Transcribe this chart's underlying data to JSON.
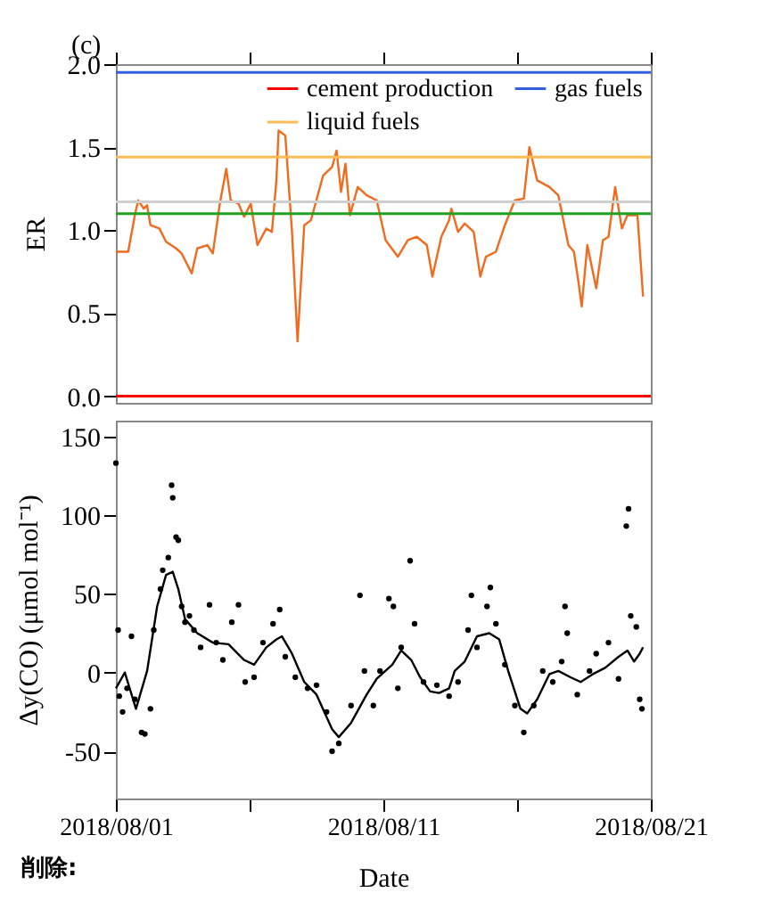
{
  "chart_data": [
    {
      "type": "line",
      "ylabel": "ER",
      "annotations": [
        "(c)"
      ],
      "legend": "top right",
      "tick_labels": "y",
      "x": [
        "2018-08-01T00:00",
        "2018-08-01T11:00",
        "2018-08-01T17:00",
        "2018-08-01T20:00",
        "2018-08-02T01:00",
        "2018-08-02T04:00",
        "2018-08-02T07:00",
        "2018-08-02T15:00",
        "2018-08-02T21:00",
        "2018-08-03T06:00",
        "2018-08-03T11:00",
        "2018-08-03T20:00",
        "2018-08-04T01:00",
        "2018-08-04T10:00",
        "2018-08-04T15:00",
        "2018-08-04T21:00",
        "2018-08-05T03:00",
        "2018-08-05T07:00",
        "2018-08-05T14:00",
        "2018-08-05T19:00",
        "2018-08-06T01:00",
        "2018-08-06T07:00",
        "2018-08-06T15:00",
        "2018-08-06T20:00",
        "2018-08-07T00:00",
        "2018-08-07T02:00",
        "2018-08-07T08:00",
        "2018-08-07T14:00",
        "2018-08-07T19:00",
        "2018-08-08T01:00",
        "2018-08-08T07:00",
        "2018-08-08T18:00",
        "2018-08-09T02:00",
        "2018-08-09T06:00",
        "2018-08-09T10:00",
        "2018-08-09T14:00",
        "2018-08-09T18:00",
        "2018-08-10T01:00",
        "2018-08-10T09:00",
        "2018-08-10T18:00",
        "2018-08-11T02:00",
        "2018-08-11T13:00",
        "2018-08-11T22:00",
        "2018-08-12T06:00",
        "2018-08-12T15:00",
        "2018-08-12T20:00",
        "2018-08-13T04:00",
        "2018-08-13T11:00",
        "2018-08-13T13:00",
        "2018-08-13T19:00",
        "2018-08-14T01:00",
        "2018-08-14T09:00",
        "2018-08-14T15:00",
        "2018-08-14T20:00",
        "2018-08-15T05:00",
        "2018-08-15T13:00",
        "2018-08-15T22:00",
        "2018-08-16T06:00",
        "2018-08-16T11:00",
        "2018-08-16T18:00",
        "2018-08-17T05:00",
        "2018-08-17T13:00",
        "2018-08-17T22:00",
        "2018-08-18T03:00",
        "2018-08-18T07:00",
        "2018-08-18T10:00",
        "2018-08-18T15:00",
        "2018-08-18T23:00",
        "2018-08-19T05:00",
        "2018-08-19T10:00",
        "2018-08-19T16:00",
        "2018-08-19T22:00",
        "2018-08-20T03:00",
        "2018-08-20T12:00",
        "2018-08-20T17:00"
      ],
      "series": [
        {
          "color": "#f26a1b",
          "values": [
            0.87,
            0.87,
            1.09,
            1.18,
            1.13,
            1.15,
            1.03,
            1.01,
            0.93,
            0.89,
            0.86,
            0.74,
            0.89,
            0.91,
            0.86,
            1.15,
            1.37,
            1.18,
            1.16,
            1.08,
            1.16,
            0.91,
            1.01,
            0.99,
            1.3,
            1.6,
            1.57,
            0.99,
            0.33,
            1.03,
            1.06,
            1.33,
            1.38,
            1.48,
            1.23,
            1.4,
            1.09,
            1.26,
            1.21,
            1.18,
            0.94,
            0.84,
            0.94,
            0.96,
            0.91,
            0.72,
            0.96,
            1.06,
            1.13,
            0.99,
            1.04,
            0.99,
            0.72,
            0.84,
            0.87,
            1.03,
            1.18,
            1.19,
            1.5,
            1.3,
            1.26,
            1.21,
            0.91,
            0.87,
            0.69,
            0.54,
            0.91,
            0.65,
            0.94,
            0.96,
            1.26,
            1.01,
            1.09,
            1.09,
            0.6
          ]
        }
      ],
      "xlim": [
        "2018-08-01",
        "2018-08-21"
      ],
      "xticks": [
        {
          "value": "2018-08-01",
          "label": null
        },
        {
          "value": "2018-08-06",
          "label": null
        },
        {
          "value": "2018-08-11",
          "label": null
        },
        {
          "value": "2018-08-16",
          "label": null
        },
        {
          "value": "2018-08-21",
          "label": null
        }
      ],
      "ylim": [
        -0.04,
        2
      ],
      "yticks": [
        {
          "value": 0,
          "label": "0.0"
        },
        {
          "value": 0.5,
          "label": "0.5"
        },
        {
          "value": 1,
          "label": "1.0"
        },
        {
          "value": 1.5,
          "label": "1.5"
        },
        {
          "value": 2,
          "label": "2.0"
        }
      ],
      "ref_lines": [
        {
          "axis": "y",
          "value": 0,
          "label": "cement production",
          "color": "#ff0000"
        },
        {
          "axis": "y",
          "value": 1.1,
          "color": "#22a022"
        },
        {
          "axis": "y",
          "value": 1.44,
          "label": "liquid fuels",
          "color": "#ffbb55"
        },
        {
          "axis": "y",
          "value": 1.95,
          "label": "gas fuels",
          "color": "#3060e0"
        },
        {
          "axis": "y",
          "value": 1.17,
          "color": "#cfcfcf"
        }
      ]
    },
    {
      "type": "scatter",
      "ylabel": "Δy(CO)  (μmol mol⁻¹)",
      "xlabel": "Date",
      "annotations": [
        "削除:"
      ],
      "series": [
        {
          "marker": "circle",
          "color": "#000000",
          "x": [
            "2018-08-01T00:00",
            "2018-08-01T02:00",
            "2018-08-01T03:00",
            "2018-08-01T06:00",
            "2018-08-01T10:00",
            "2018-08-01T14:00",
            "2018-08-01T17:00",
            "2018-08-01T23:00",
            "2018-08-02T02:00",
            "2018-08-02T07:00",
            "2018-08-02T10:00",
            "2018-08-02T16:00",
            "2018-08-02T18:00",
            "2018-08-02T23:00",
            "2018-08-03T02:00",
            "2018-08-03T03:00",
            "2018-08-03T06:00",
            "2018-08-03T08:00",
            "2018-08-03T11:00",
            "2018-08-03T14:00",
            "2018-08-03T18:00",
            "2018-08-03T22:00",
            "2018-08-04T04:00",
            "2018-08-04T12:00",
            "2018-08-04T18:00",
            "2018-08-05T00:00",
            "2018-08-05T08:00",
            "2018-08-05T14:00",
            "2018-08-05T20:00",
            "2018-08-06T04:00",
            "2018-08-06T12:00",
            "2018-08-06T21:00",
            "2018-08-07T03:00",
            "2018-08-07T08:00",
            "2018-08-07T17:00",
            "2018-08-08T04:00",
            "2018-08-08T12:00",
            "2018-08-08T21:00",
            "2018-08-09T02:00",
            "2018-08-09T08:00",
            "2018-08-09T19:00",
            "2018-08-10T03:00",
            "2018-08-10T07:00",
            "2018-08-10T15:00",
            "2018-08-10T21:00",
            "2018-08-11T05:00",
            "2018-08-11T09:00",
            "2018-08-11T13:00",
            "2018-08-11T16:00",
            "2018-08-12T00:00",
            "2018-08-12T04:00",
            "2018-08-12T12:00",
            "2018-08-13T00:00",
            "2018-08-13T11:00",
            "2018-08-13T19:00",
            "2018-08-14T04:00",
            "2018-08-14T07:00",
            "2018-08-14T12:00",
            "2018-08-14T21:00",
            "2018-08-15T00:00",
            "2018-08-15T05:00",
            "2018-08-15T13:00",
            "2018-08-15T22:00",
            "2018-08-16T06:00",
            "2018-08-16T15:00",
            "2018-08-16T23:00",
            "2018-08-17T08:00",
            "2018-08-17T16:00",
            "2018-08-17T19:00",
            "2018-08-17T21:00",
            "2018-08-18T06:00",
            "2018-08-18T17:00",
            "2018-08-18T23:00",
            "2018-08-19T10:00",
            "2018-08-19T19:00",
            "2018-08-20T02:00",
            "2018-08-20T04:00",
            "2018-08-20T06:00",
            "2018-08-20T11:00",
            "2018-08-20T14:00",
            "2018-08-20T16:00"
          ],
          "values": [
            133,
            27,
            -15,
            -25,
            -10,
            23,
            -17,
            -38,
            -39,
            -23,
            27,
            53,
            65,
            73,
            119,
            111,
            86,
            84,
            42,
            32,
            36,
            27,
            16,
            43,
            19,
            8,
            32,
            43,
            -6,
            -3,
            19,
            31,
            40,
            10,
            -3,
            -10,
            -8,
            -25,
            -50,
            -45,
            -21,
            49,
            1,
            -21,
            1,
            47,
            42,
            -10,
            16,
            71,
            31,
            -6,
            -8,
            -15,
            -6,
            27,
            49,
            16,
            42,
            54,
            31,
            5,
            -21,
            -38,
            -21,
            1,
            -6,
            7,
            42,
            25,
            -14,
            1,
            12,
            19,
            -4,
            93,
            104,
            36,
            29,
            -17,
            -23
          ]
        },
        {
          "type": "line",
          "color": "#000000",
          "x": [
            "2018-08-01T00:00",
            "2018-08-01T08:00",
            "2018-08-01T18:00",
            "2018-08-02T04:00",
            "2018-08-02T13:00",
            "2018-08-02T21:00",
            "2018-08-03T03:00",
            "2018-08-03T08:00",
            "2018-08-03T14:00",
            "2018-08-04T01:00",
            "2018-08-04T15:00",
            "2018-08-05T05:00",
            "2018-08-05T19:00",
            "2018-08-06T04:00",
            "2018-08-06T15:00",
            "2018-08-07T00:00",
            "2018-08-07T05:00",
            "2018-08-07T14:00",
            "2018-08-08T01:00",
            "2018-08-08T12:00",
            "2018-08-09T02:00",
            "2018-08-09T08:00",
            "2018-08-09T19:00",
            "2018-08-10T09:00",
            "2018-08-10T18:00",
            "2018-08-11T08:00",
            "2018-08-11T16:00",
            "2018-08-12T01:00",
            "2018-08-12T09:00",
            "2018-08-12T18:00",
            "2018-08-13T02:00",
            "2018-08-13T11:00",
            "2018-08-13T16:00",
            "2018-08-14T01:00",
            "2018-08-14T12:00",
            "2018-08-14T23:00",
            "2018-08-15T08:00",
            "2018-08-15T16:00",
            "2018-08-16T03:00",
            "2018-08-16T09:00",
            "2018-08-16T18:00",
            "2018-08-17T05:00",
            "2018-08-17T13:00",
            "2018-08-18T00:00",
            "2018-08-18T09:00",
            "2018-08-18T20:00",
            "2018-08-19T07:00",
            "2018-08-19T19:00",
            "2018-08-20T03:00",
            "2018-08-20T09:00",
            "2018-08-20T14:00",
            "2018-08-20T17:00"
          ],
          "values": [
            -10,
            0,
            -23,
            1,
            42,
            62,
            64,
            53,
            34,
            25,
            19,
            18,
            8,
            5,
            16,
            21,
            23,
            12,
            -6,
            -14,
            -36,
            -41,
            -32,
            -14,
            -4,
            5,
            14,
            8,
            -3,
            -12,
            -13,
            -10,
            1,
            7,
            23,
            25,
            21,
            1,
            -23,
            -26,
            -17,
            -1,
            1,
            -3,
            -6,
            -1,
            3,
            10,
            14,
            7,
            12,
            16
          ]
        }
      ],
      "xlim": [
        "2018-08-01",
        "2018-08-21"
      ],
      "xticks": [
        {
          "value": "2018-08-01",
          "label": "2018/08/01"
        },
        {
          "value": "2018-08-06",
          "label": null
        },
        {
          "value": "2018-08-11",
          "label": "2018/08/11"
        },
        {
          "value": "2018-08-16",
          "label": null
        },
        {
          "value": "2018-08-21",
          "label": "2018/08/21"
        }
      ],
      "ylim": [
        -80,
        160
      ],
      "yticks": [
        -50,
        0,
        50,
        100,
        150
      ]
    }
  ]
}
